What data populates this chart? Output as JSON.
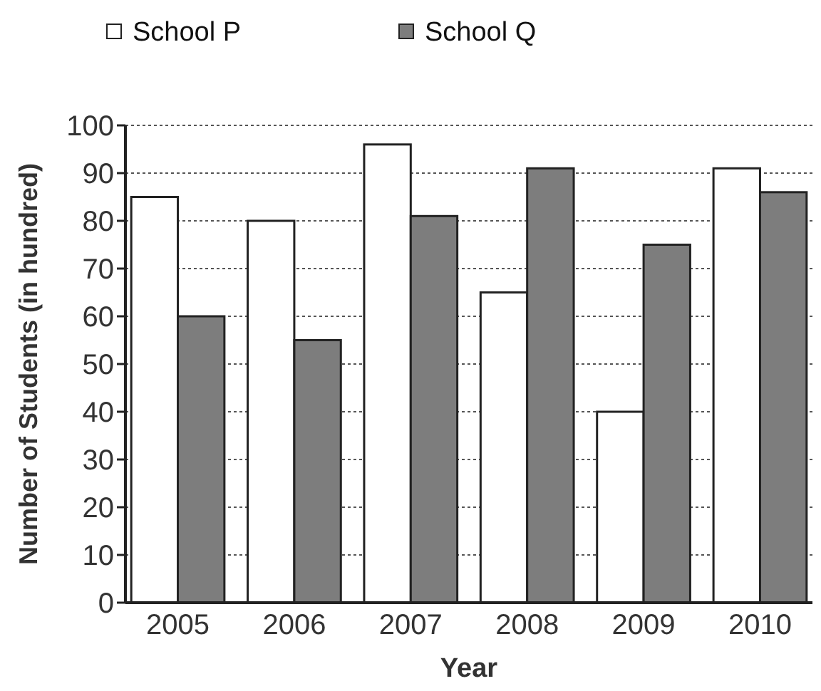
{
  "chart_data": {
    "type": "bar",
    "xlabel": "Year",
    "ylabel": "Number of Students (in hundred)",
    "categories": [
      "2005",
      "2006",
      "2007",
      "2008",
      "2009",
      "2010"
    ],
    "series": [
      {
        "name": "School P",
        "color": "#ffffff",
        "values": [
          85,
          80,
          96,
          65,
          40,
          91
        ]
      },
      {
        "name": "School Q",
        "color": "#7d7d7d",
        "values": [
          60,
          55,
          81,
          91,
          75,
          86
        ]
      }
    ],
    "ylim": [
      0,
      100
    ],
    "yticks": [
      0,
      10,
      20,
      30,
      40,
      50,
      60,
      70,
      80,
      90,
      100
    ],
    "grid": "y",
    "legend": "top left"
  }
}
